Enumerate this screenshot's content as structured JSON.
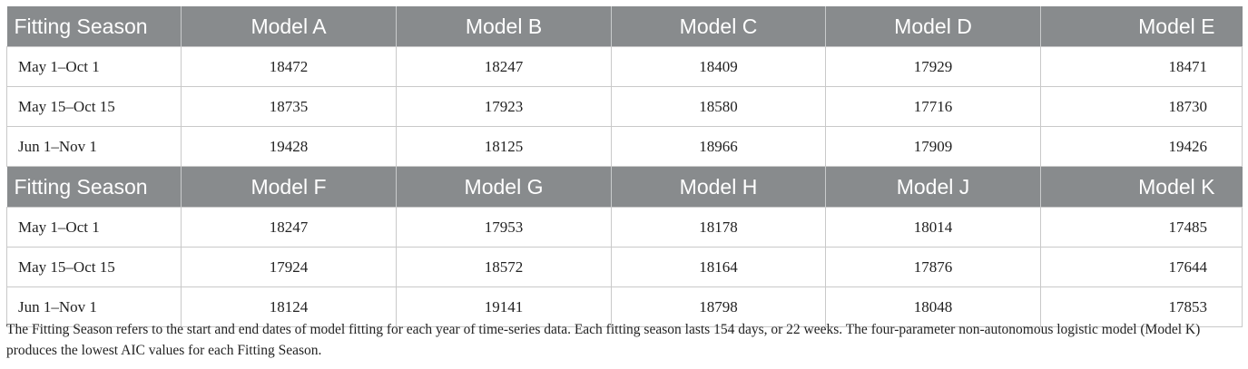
{
  "table": {
    "panel1": {
      "headers": [
        "Fitting Season",
        "Model A",
        "Model B",
        "Model C",
        "Model D",
        "Model E"
      ],
      "rows": [
        [
          "May 1–Oct 1",
          "18472",
          "18247",
          "18409",
          "17929",
          "18471"
        ],
        [
          "May 15–Oct 15",
          "18735",
          "17923",
          "18580",
          "17716",
          "18730"
        ],
        [
          "Jun 1–Nov 1",
          "19428",
          "18125",
          "18966",
          "17909",
          "19426"
        ]
      ]
    },
    "panel2": {
      "headers": [
        "Fitting Season",
        "Model F",
        "Model G",
        "Model H",
        "Model J",
        "Model K"
      ],
      "rows": [
        [
          "May 1–Oct 1",
          "18247",
          "17953",
          "18178",
          "18014",
          "17485"
        ],
        [
          "May 15–Oct 15",
          "17924",
          "18572",
          "18164",
          "17876",
          "17644"
        ],
        [
          "Jun 1–Nov 1",
          "18124",
          "19141",
          "18798",
          "18048",
          "17853"
        ]
      ]
    },
    "colors": {
      "header_bg": "#888b8d",
      "header_text": "#ffffff",
      "border": "#c9c9c9"
    }
  },
  "footnote": "The Fitting Season refers to the start and end dates of model fitting for each year of time-series data. Each fitting season lasts 154 days, or 22 weeks. The four-parameter non-autonomous logistic model (Model K) produces the lowest AIC values for each Fitting Season."
}
